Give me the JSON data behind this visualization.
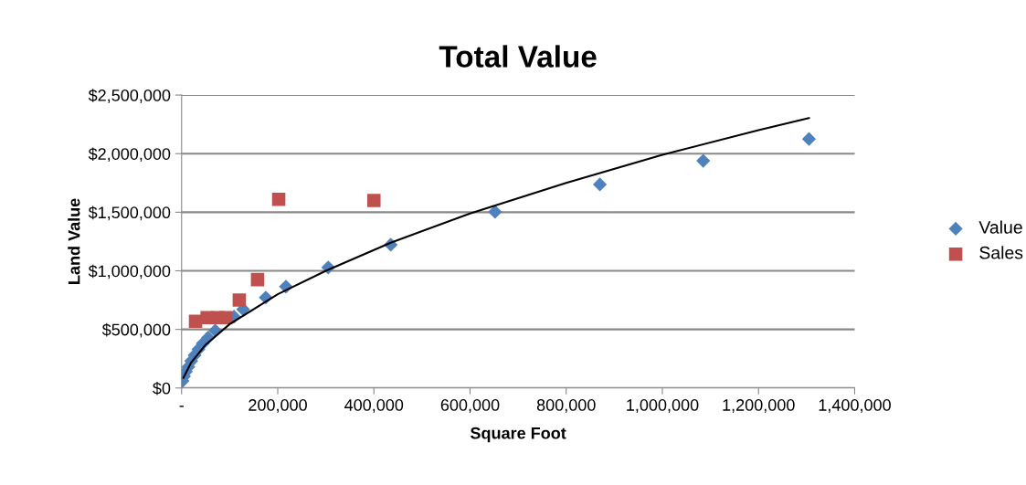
{
  "chart_data": {
    "type": "scatter",
    "title": "Total Value",
    "xlabel": "Square Foot",
    "ylabel": "Land Value",
    "xlim": [
      0,
      1400000
    ],
    "xticks": [
      {
        "value": 0,
        "label": "-"
      },
      {
        "value": 200000,
        "label": "200,000"
      },
      {
        "value": 400000,
        "label": "400,000"
      },
      {
        "value": 600000,
        "label": "600,000"
      },
      {
        "value": 800000,
        "label": "800,000"
      },
      {
        "value": 1000000,
        "label": "1,000,000"
      },
      {
        "value": 1200000,
        "label": "1,200,000"
      },
      {
        "value": 1400000,
        "label": "1,400,000"
      }
    ],
    "ylim": [
      0,
      2500000
    ],
    "yticks": [
      {
        "value": 0,
        "label": "$0"
      },
      {
        "value": 500000,
        "label": "$500,000"
      },
      {
        "value": 1000000,
        "label": "$1,000,000"
      },
      {
        "value": 1500000,
        "label": "$1,500,000"
      },
      {
        "value": 2000000,
        "label": "$2,000,000"
      },
      {
        "value": 2500000,
        "label": "$2,500,000"
      }
    ],
    "grid": "y",
    "legend": "right",
    "series": [
      {
        "name": "Value",
        "color": "#4f81bd",
        "marker": "diamond",
        "x": [
          2000,
          5000,
          9000,
          14000,
          20000,
          27000,
          35000,
          44000,
          55000,
          70000,
          87000,
          109000,
          128000,
          175000,
          217000,
          305000,
          435000,
          652000,
          870000,
          1085000,
          1305000
        ],
        "values": [
          60000,
          100000,
          140000,
          180000,
          230000,
          280000,
          330000,
          380000,
          430000,
          490000,
          null,
          609000,
          671000,
          772000,
          865000,
          1029000,
          1223000,
          1503000,
          1737000,
          1939000,
          2125000
        ]
      },
      {
        "name": "Sales",
        "color": "#c0504d",
        "marker": "square",
        "x": [
          29000,
          53000,
          75000,
          92000,
          120000,
          158000,
          202000,
          400000
        ],
        "values": [
          570000,
          600000,
          600000,
          600000,
          750000,
          925000,
          1610000,
          1600000
        ]
      },
      {
        "type": "line",
        "color": "#000000",
        "marker": "none",
        "line_style": "solid",
        "x": [
          4000,
          20000,
          50000,
          100000,
          200000,
          300000,
          435000,
          600000,
          800000,
          1000000,
          1200000,
          1305000
        ],
        "values": [
          88000,
          218000,
          369000,
          545000,
          800000,
          1000000,
          1240000,
          1490000,
          1750000,
          1990000,
          2200000,
          2304000
        ]
      }
    ]
  }
}
